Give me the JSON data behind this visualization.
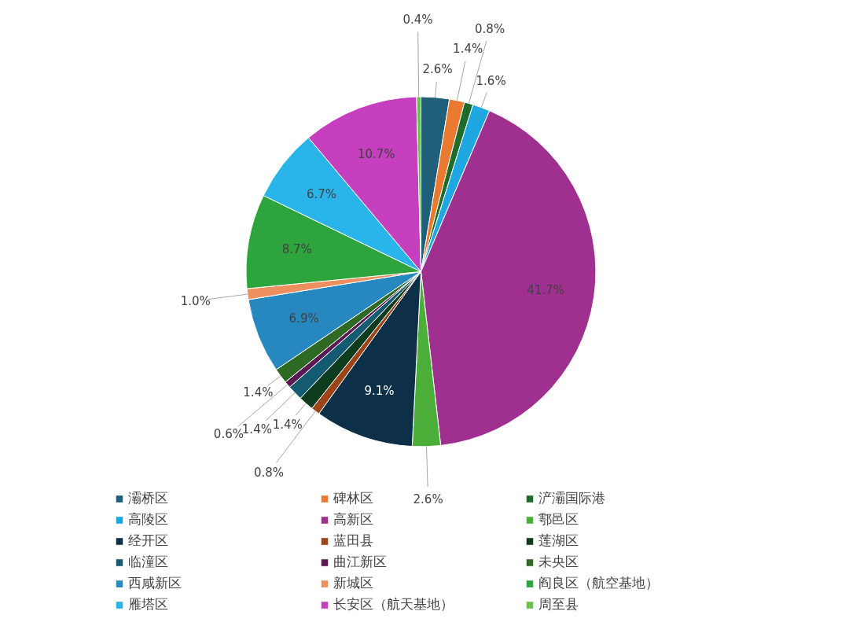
{
  "chart_data": {
    "type": "pie",
    "legend": "bottom",
    "value_labels": [
      "2.6%",
      "1.4%",
      "0.8%",
      "1.6%",
      "41.7%",
      "2.6%",
      "9.1%",
      "0.8%",
      "1.4%",
      "1.4%",
      "0.6%",
      "1.4%",
      "6.9%",
      "1.0%",
      "8.7%",
      "6.7%",
      "10.7%",
      "0.4%"
    ],
    "categories": [
      "灞桥区",
      "碑林区",
      "浐灞国际港",
      "高陵区",
      "高新区",
      "鄠邑区",
      "经开区",
      "蓝田县",
      "莲湖区",
      "临潼区",
      "曲江新区",
      "未央区",
      "西咸新区",
      "新城区",
      "阎良区（航空基地）",
      "雁塔区",
      "长安区（航天基地）",
      "周至县"
    ],
    "values": [
      2.6,
      1.4,
      0.8,
      1.6,
      41.7,
      2.6,
      9.1,
      0.8,
      1.4,
      1.4,
      0.6,
      1.4,
      6.9,
      1.0,
      8.7,
      6.7,
      10.7,
      0.4
    ],
    "colors": [
      "#1f5f7a",
      "#e97a2f",
      "#1e6b2a",
      "#1ea7e0",
      "#a0308f",
      "#4caf3a",
      "#0d3048",
      "#9c4318",
      "#0d3d1e",
      "#145a70",
      "#5a1a55",
      "#2f6a25",
      "#2788c0",
      "#ee8f5f",
      "#2ea43c",
      "#2ab5ea",
      "#c53fbf",
      "#6cc04a"
    ]
  }
}
